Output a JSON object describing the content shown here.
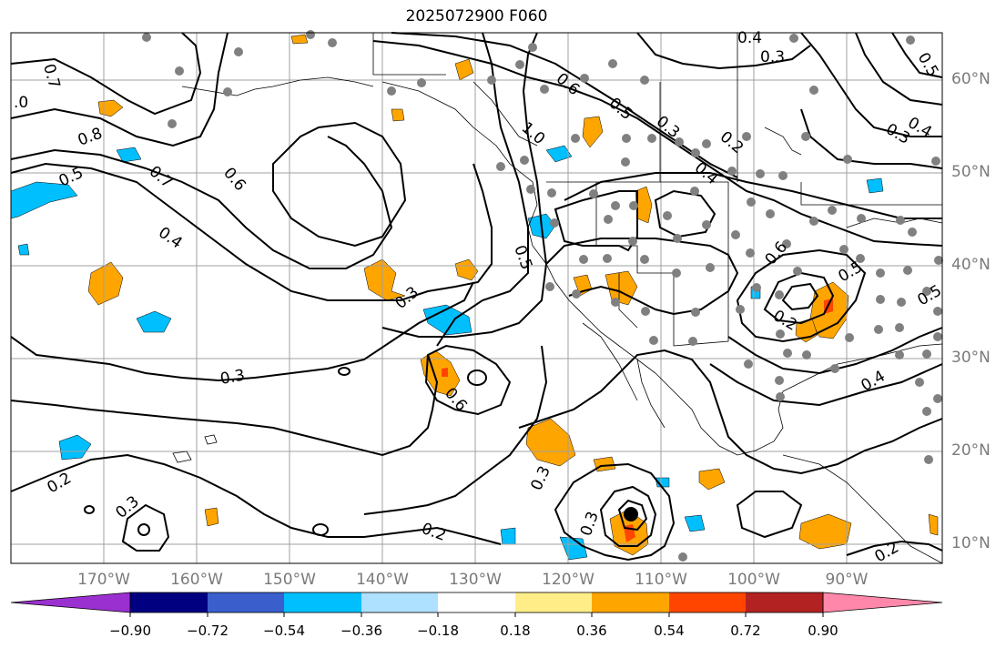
{
  "title": "2025072900 F060",
  "lat_labels": [
    "60°N",
    "50°N",
    "40°N",
    "30°N",
    "20°N",
    "10°N"
  ],
  "lon_labels": [
    "170°W",
    "160°W",
    "150°W",
    "140°W",
    "130°W",
    "120°W",
    "110°W",
    "100°W",
    "90°W"
  ],
  "colorbar": {
    "ticks": [
      "−0.90",
      "−0.72",
      "−0.54",
      "−0.36",
      "−0.18",
      "0.18",
      "0.36",
      "0.54",
      "0.72",
      "0.90"
    ],
    "colors": [
      "#9b30d0",
      "#000080",
      "#3a5fcd",
      "#00bfff",
      "#aee0ff",
      "#ffffff",
      "#ffee88",
      "#ffa500",
      "#ff4500",
      "#b22222",
      "#ff88aa"
    ]
  },
  "contour_labels": [
    {
      "text": "0.7"
    },
    {
      "text": "0.8"
    },
    {
      "text": ".0"
    },
    {
      "text": "0.5"
    },
    {
      "text": "0.7"
    },
    {
      "text": "0.6"
    },
    {
      "text": "0.4"
    },
    {
      "text": "0.3"
    },
    {
      "text": "0.3"
    },
    {
      "text": "0.6"
    },
    {
      "text": "0.2"
    },
    {
      "text": "0.3"
    },
    {
      "text": "0.2"
    },
    {
      "text": "0.3"
    },
    {
      "text": "0.3"
    },
    {
      "text": "1.0"
    },
    {
      "text": "0.6"
    },
    {
      "text": "0.5"
    },
    {
      "text": "0.3"
    },
    {
      "text": "0.2"
    },
    {
      "text": "0.4"
    },
    {
      "text": "0.4"
    },
    {
      "text": "0.3"
    },
    {
      "text": "0.5"
    },
    {
      "text": "0.4"
    },
    {
      "text": "0.3"
    },
    {
      "text": "0.5"
    },
    {
      "text": "0.6"
    },
    {
      "text": "0.5"
    },
    {
      "text": "0.2"
    },
    {
      "text": "0.4"
    },
    {
      "text": "0.5"
    },
    {
      "text": "0.2"
    }
  ]
}
